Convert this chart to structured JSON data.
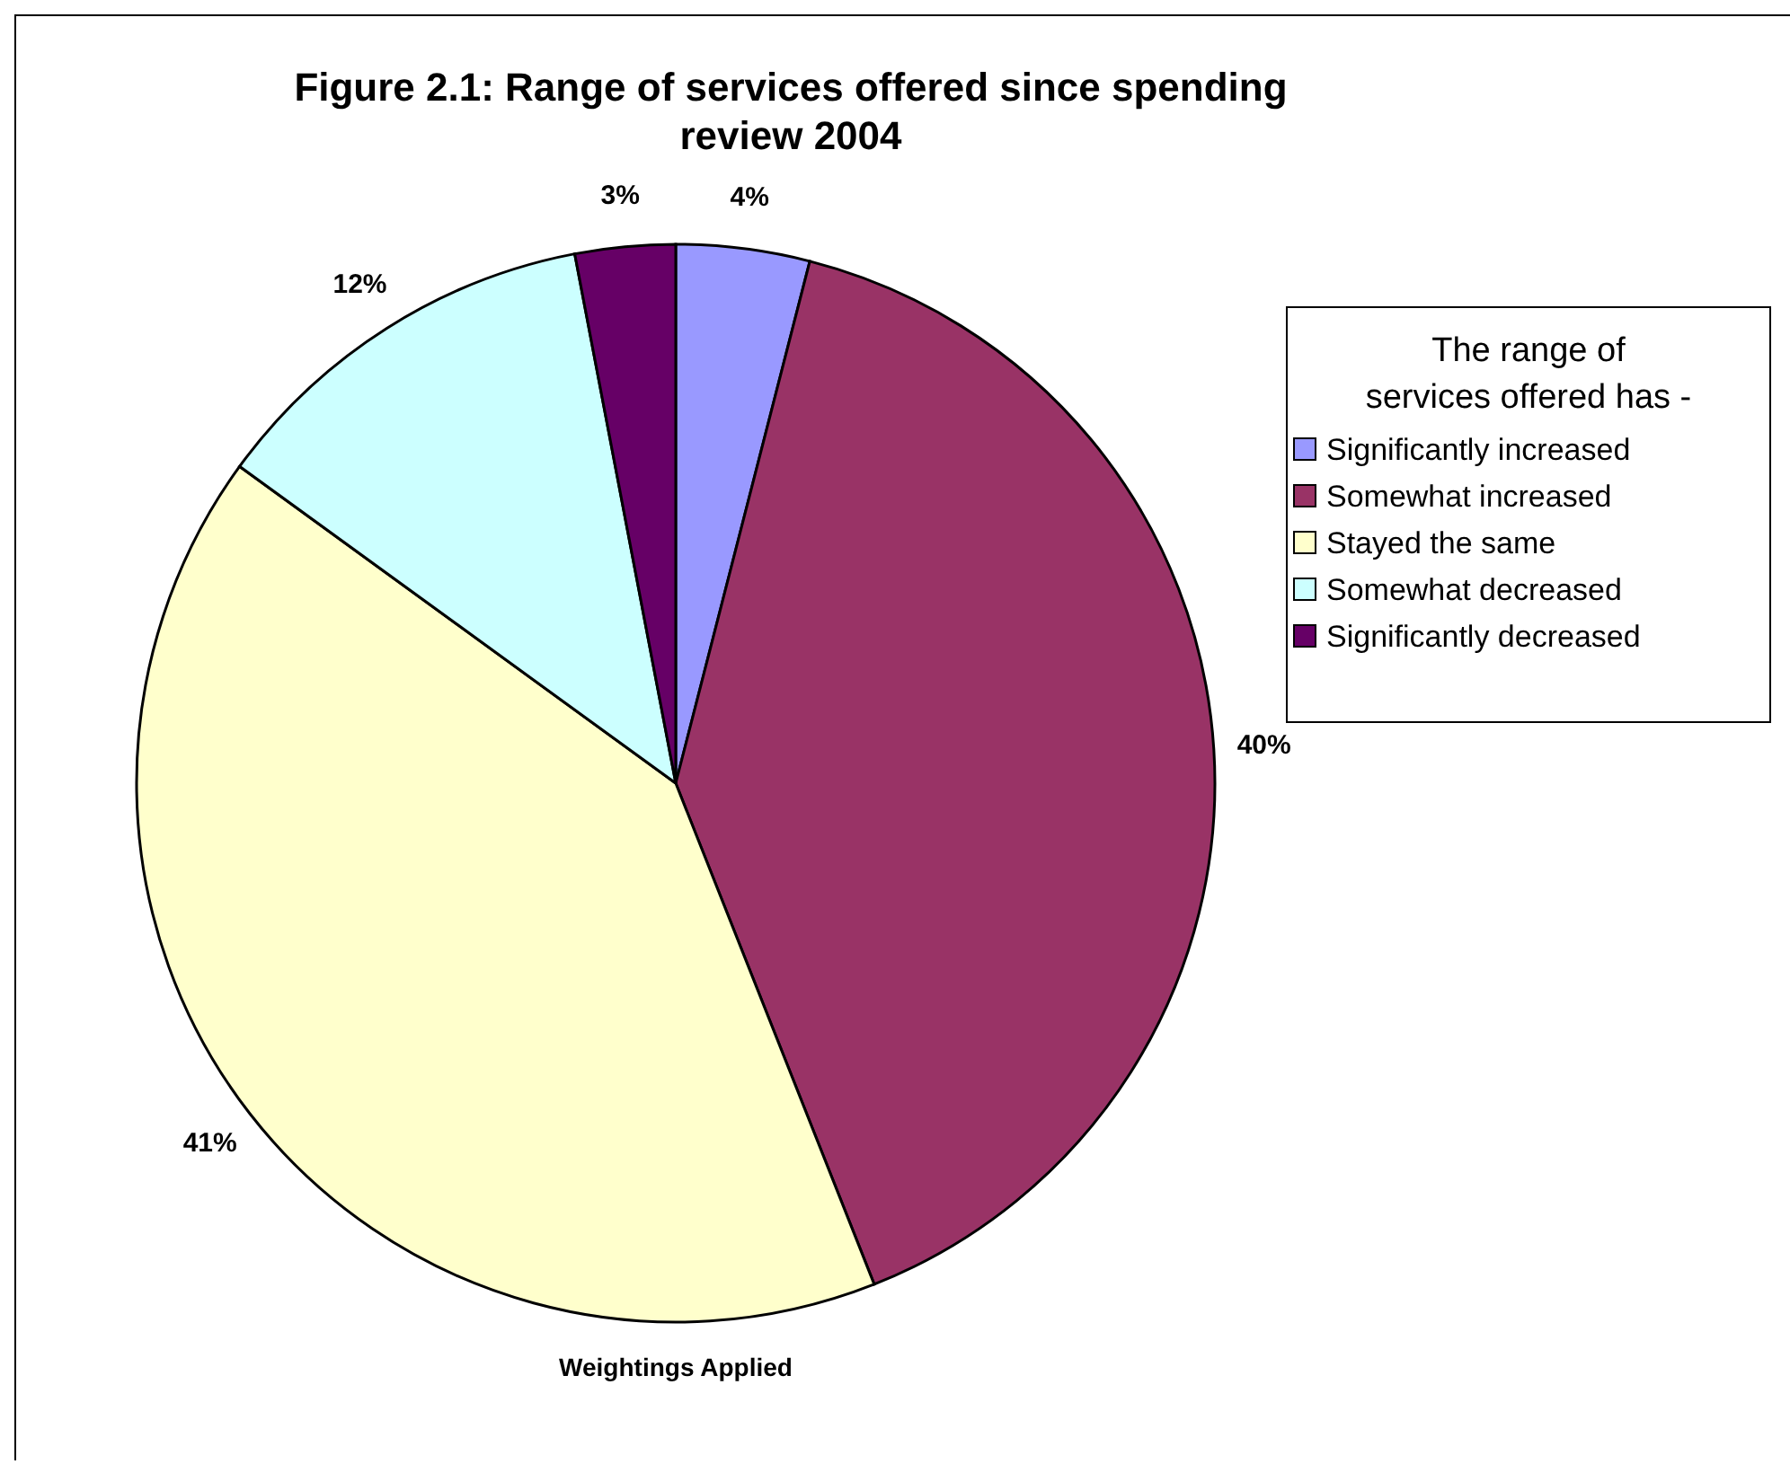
{
  "chart_data": {
    "type": "pie",
    "title": "Figure 2.1: Range of services offered since spending review 2004",
    "legend_title": "The range of services offered has -",
    "categories": [
      "Significantly increased",
      "Somewhat increased",
      "Stayed the same",
      "Somewhat decreased",
      "Significantly decreased"
    ],
    "values": [
      4,
      40,
      41,
      12,
      3
    ],
    "colors": [
      "#9999ff",
      "#993366",
      "#ffffcc",
      "#ccffff",
      "#660066"
    ],
    "value_labels": [
      "4%",
      "40%",
      "41%",
      "12%",
      "3%"
    ],
    "annotations": [
      "Weightings Applied"
    ],
    "legend": "right"
  }
}
